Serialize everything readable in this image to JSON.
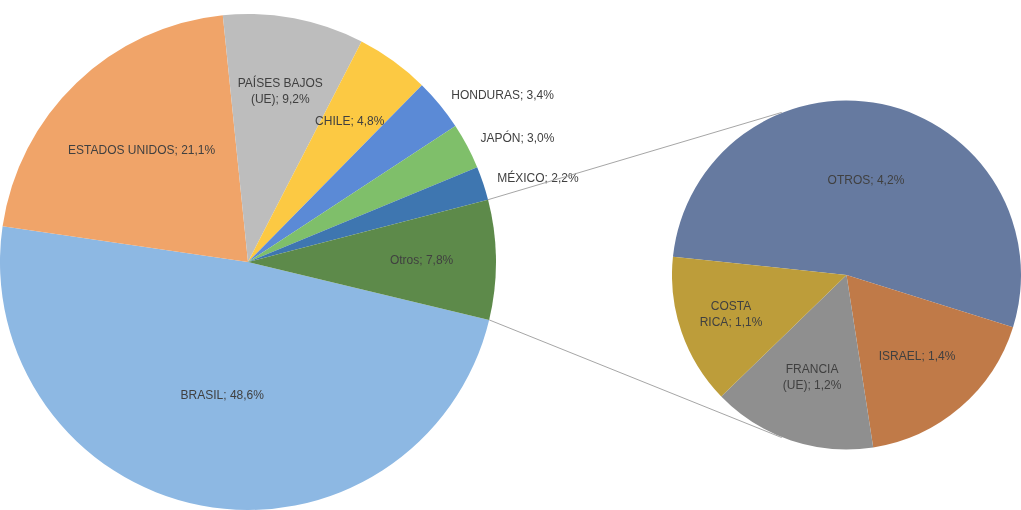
{
  "chart_data": [
    {
      "type": "pie",
      "categories": [
        "BRASIL",
        "ESTADOS UNIDOS",
        "PAÍSES BAJOS (UE)",
        "CHILE",
        "HONDURAS",
        "JAPÓN",
        "MÉXICO",
        "Otros"
      ],
      "values": [
        48.6,
        21.1,
        9.2,
        4.8,
        3.4,
        3.0,
        2.2,
        7.8
      ],
      "colors": [
        "#8db8e3",
        "#f0a469",
        "#bdbdbd",
        "#fcc943",
        "#5b8ad6",
        "#7fbf6a",
        "#3e76b0",
        "#5d8a4a"
      ],
      "value_labels": [
        "48,6%",
        "21,1%",
        "9,2%",
        "4,8%",
        "3,4%",
        "3,0%",
        "2,2%",
        "7,8%"
      ],
      "legend": false
    },
    {
      "type": "pie",
      "categories": [
        "OTROS",
        "ISRAEL",
        "FRANCIA (UE)",
        "COSTA RICA"
      ],
      "values": [
        4.2,
        1.4,
        1.2,
        1.1
      ],
      "colors": [
        "#667aa0",
        "#c07a48",
        "#8f8f8f",
        "#bd9d3a"
      ],
      "value_labels": [
        "4,2%",
        "1,4%",
        "1,2%",
        "1,1%"
      ],
      "legend": false
    }
  ]
}
